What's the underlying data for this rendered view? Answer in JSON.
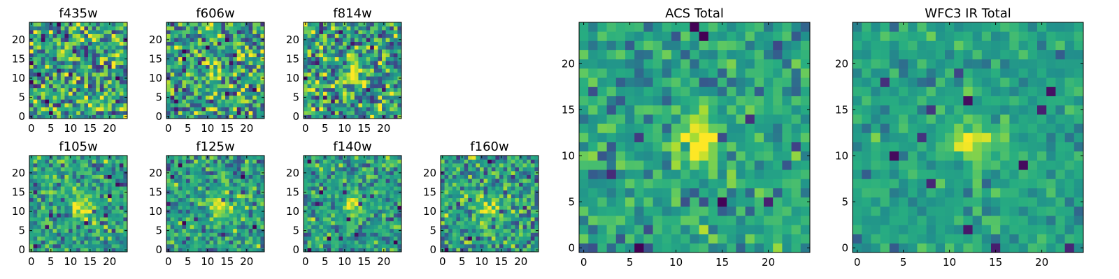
{
  "chart_data": [
    {
      "type": "heatmap",
      "title": "f435w",
      "x": {
        "ticks": [
          0,
          5,
          10,
          15,
          20
        ],
        "range": [
          -0.5,
          24.5
        ]
      },
      "y": {
        "ticks": [
          0,
          5,
          10,
          15,
          20
        ],
        "range": [
          -0.5,
          24.5
        ]
      },
      "grid_size": 25,
      "colormap": "viridis",
      "source_blob": {
        "pos": [
          12.5,
          11.5
        ],
        "sigma": 2.0,
        "amp": 0.0
      },
      "noise": 0.28,
      "seed": 11
    },
    {
      "type": "heatmap",
      "title": "f606w",
      "x": {
        "ticks": [
          0,
          5,
          10,
          15,
          20
        ],
        "range": [
          -0.5,
          24.5
        ]
      },
      "y": {
        "ticks": [
          0,
          5,
          10,
          15,
          20
        ],
        "range": [
          -0.5,
          24.5
        ]
      },
      "grid_size": 25,
      "colormap": "viridis",
      "source_blob": {
        "pos": [
          12.5,
          11.5
        ],
        "sigma": 1.8,
        "amp": 0.35
      },
      "noise": 0.26,
      "seed": 23
    },
    {
      "type": "heatmap",
      "title": "f814w",
      "x": {
        "ticks": [
          0,
          5,
          10,
          15,
          20
        ],
        "range": [
          -0.5,
          24.5
        ]
      },
      "y": {
        "ticks": [
          0,
          5,
          10,
          15,
          20
        ],
        "range": [
          -0.5,
          24.5
        ]
      },
      "grid_size": 25,
      "colormap": "viridis",
      "source_blob": {
        "pos": [
          12.5,
          11.5
        ],
        "sigma": 1.8,
        "amp": 0.5
      },
      "noise": 0.26,
      "seed": 37
    },
    {
      "type": "heatmap",
      "title": "f105w",
      "x": {
        "ticks": [
          0,
          5,
          10,
          15,
          20
        ],
        "range": [
          -0.5,
          24.5
        ]
      },
      "y": {
        "ticks": [
          0,
          5,
          10,
          15,
          20
        ],
        "range": [
          -0.5,
          24.5
        ]
      },
      "grid_size": 25,
      "colormap": "viridis",
      "source_blob": {
        "pos": [
          13,
          11
        ],
        "sigma": 2.2,
        "amp": 0.35
      },
      "noise": 0.17,
      "seed": 41
    },
    {
      "type": "heatmap",
      "title": "f125w",
      "x": {
        "ticks": [
          0,
          5,
          10,
          15,
          20
        ],
        "range": [
          -0.5,
          24.5
        ]
      },
      "y": {
        "ticks": [
          0,
          5,
          10,
          15,
          20
        ],
        "range": [
          -0.5,
          24.5
        ]
      },
      "grid_size": 25,
      "colormap": "viridis",
      "source_blob": {
        "pos": [
          13,
          11
        ],
        "sigma": 2.2,
        "amp": 0.3
      },
      "noise": 0.18,
      "seed": 53
    },
    {
      "type": "heatmap",
      "title": "f140w",
      "x": {
        "ticks": [
          0,
          5,
          10,
          15,
          20
        ],
        "range": [
          -0.5,
          24.5
        ]
      },
      "y": {
        "ticks": [
          0,
          5,
          10,
          15,
          20
        ],
        "range": [
          -0.5,
          24.5
        ]
      },
      "grid_size": 25,
      "colormap": "viridis",
      "source_blob": {
        "pos": [
          12.5,
          11
        ],
        "sigma": 2.2,
        "amp": 0.3
      },
      "noise": 0.17,
      "seed": 67
    },
    {
      "type": "heatmap",
      "title": "f160w",
      "x": {
        "ticks": [
          0,
          5,
          10,
          15,
          20
        ],
        "range": [
          -0.5,
          24.5
        ]
      },
      "y": {
        "ticks": [
          0,
          5,
          10,
          15,
          20
        ],
        "range": [
          -0.5,
          24.5
        ]
      },
      "grid_size": 25,
      "colormap": "viridis",
      "source_blob": {
        "pos": [
          12.5,
          11
        ],
        "sigma": 2.0,
        "amp": 0.3
      },
      "noise": 0.2,
      "seed": 79
    },
    {
      "type": "heatmap",
      "title": "ACS Total",
      "x": {
        "ticks": [
          0,
          5,
          10,
          15,
          20
        ],
        "range": [
          -0.5,
          24.5
        ]
      },
      "y": {
        "ticks": [
          0,
          5,
          10,
          15,
          20
        ],
        "range": [
          -0.5,
          24.5
        ]
      },
      "grid_size": 25,
      "colormap": "viridis",
      "source_blob": {
        "pos": [
          12.5,
          11.5
        ],
        "sigma": 1.6,
        "amp": 0.55
      },
      "noise": 0.14,
      "seed": 97
    },
    {
      "type": "heatmap",
      "title": "WFC3 IR Total",
      "x": {
        "ticks": [
          0,
          5,
          10,
          15,
          20
        ],
        "range": [
          -0.5,
          24.5
        ]
      },
      "y": {
        "ticks": [
          0,
          5,
          10,
          15,
          20
        ],
        "range": [
          -0.5,
          24.5
        ]
      },
      "grid_size": 25,
      "colormap": "viridis",
      "source_blob": {
        "pos": [
          12.5,
          11.5
        ],
        "sigma": 1.8,
        "amp": 0.35
      },
      "noise": 0.1,
      "seed": 113
    }
  ]
}
